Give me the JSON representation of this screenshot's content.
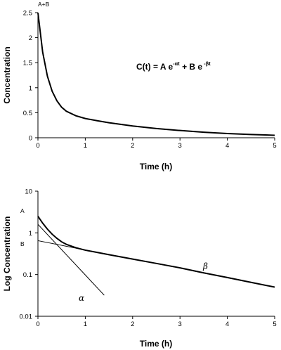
{
  "chart_data": [
    {
      "type": "line",
      "title": "",
      "xlabel": "Time (h)",
      "ylabel": "Concentration",
      "xlim": [
        0,
        5
      ],
      "ylim": [
        0,
        2.5
      ],
      "x_ticks": [
        "0",
        "1",
        "2",
        "3",
        "4",
        "5"
      ],
      "y_ticks": [
        "0",
        "0.5",
        "1",
        "1.5",
        "2",
        "2.5"
      ],
      "grid": false,
      "series": [
        {
          "x": [
            0,
            0.1,
            0.2,
            0.3,
            0.4,
            0.5,
            0.6,
            0.8,
            1,
            1.25,
            1.5,
            2,
            2.5,
            3,
            3.5,
            4,
            4.5,
            5
          ],
          "y": [
            2.5,
            1.71,
            1.23,
            0.93,
            0.74,
            0.61,
            0.53,
            0.44,
            0.385,
            0.34,
            0.3,
            0.235,
            0.185,
            0.145,
            0.11,
            0.085,
            0.065,
            0.05
          ]
        }
      ],
      "annotations": {
        "point_label": "A+B",
        "equation": {
          "lhs": "C(t) = A e",
          "exp1": "-αt",
          "mid": " +  B e",
          "exp2": " -βt"
        }
      }
    },
    {
      "type": "line",
      "title": "",
      "xlabel": "Time (h)",
      "ylabel": "Log Concentration",
      "xlim": [
        0,
        5
      ],
      "ylim": [
        0.01,
        10
      ],
      "yscale": "log",
      "x_ticks": [
        "0",
        "1",
        "2",
        "3",
        "4",
        "5"
      ],
      "y_ticks": [
        "0.01",
        "0.1",
        "1",
        "10"
      ],
      "grid": false,
      "series": [
        {
          "x": [
            0,
            0.1,
            0.2,
            0.3,
            0.4,
            0.5,
            0.6,
            0.8,
            1,
            1.25,
            1.5,
            2,
            2.5,
            3,
            3.5,
            4,
            4.5,
            5
          ],
          "y": [
            2.5,
            1.71,
            1.23,
            0.93,
            0.74,
            0.61,
            0.53,
            0.44,
            0.385,
            0.34,
            0.3,
            0.235,
            0.185,
            0.145,
            0.11,
            0.085,
            0.065,
            0.05
          ]
        },
        {
          "x": [
            0,
            1.4
          ],
          "y": [
            1.6,
            0.032
          ]
        },
        {
          "x": [
            0,
            1.2
          ],
          "y": [
            0.65,
            0.35
          ]
        }
      ],
      "annotations": {
        "a_label": "A",
        "b_label": "B",
        "alpha_label": "α",
        "beta_label": "β"
      }
    }
  ]
}
